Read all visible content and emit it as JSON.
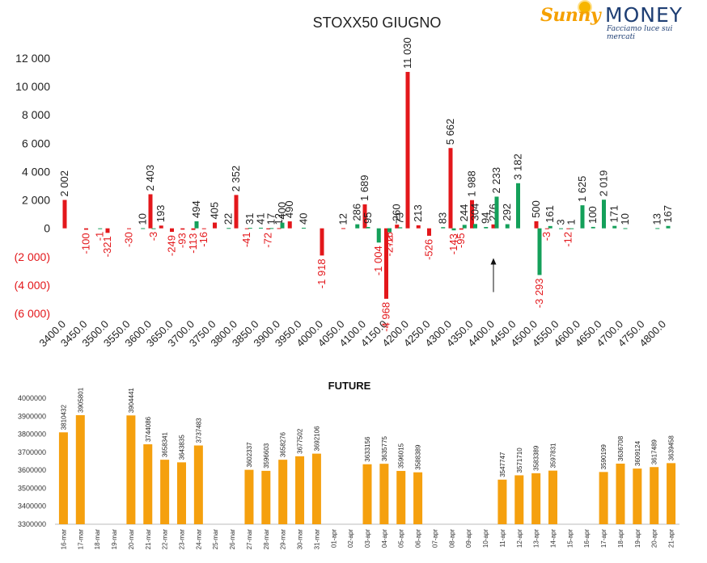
{
  "logo": {
    "sunny": "Sunny",
    "money": "MONEY",
    "tagline": "Facciamo luce sui mercati"
  },
  "chart_data": [
    {
      "type": "bar",
      "title": "STOXX50 GIUGNO",
      "ylim": [
        -6000,
        12000
      ],
      "yticks": [
        12000,
        10000,
        8000,
        6000,
        4000,
        2000,
        0,
        -2000,
        -4000,
        -6000
      ],
      "ytick_labels": [
        "12 000",
        "10 000",
        "8 000",
        "6 000",
        "4 000",
        "2 000",
        "0",
        "(2 000)",
        "(4 000)",
        "(6 000)"
      ],
      "categories": [
        "3400.0",
        "3450.0",
        "3500.0",
        "3550.0",
        "3600.0",
        "3650.0",
        "3700.0",
        "3750.0",
        "3800.0",
        "3850.0",
        "3900.0",
        "3950.0",
        "4000.0",
        "4050.0",
        "4100.0",
        "4150.0",
        "4200.0",
        "4250.0",
        "4300.0",
        "4350.0",
        "4400.0",
        "4450.0",
        "4500.0",
        "4550.0",
        "4600.0",
        "4650.0",
        "4700.0",
        "4750.0",
        "4800.0"
      ],
      "colors": {
        "series1": "#e3171b",
        "series2": "#14a05a",
        "positive_label": "#222222",
        "negative_label": "#e3171b"
      },
      "series": [
        {
          "values": [
            {
              "x": 3400,
              "y": 2002,
              "label": "2 002"
            },
            {
              "x": 3450,
              "y": -100,
              "label": "-100"
            },
            {
              "x": 3500,
              "y": -321,
              "label": "-321"
            },
            {
              "x": 3550,
              "y": -30,
              "label": "-30"
            },
            {
              "x": 3600,
              "y": 2403,
              "label": "2 403"
            },
            {
              "x": 3625,
              "y": 193,
              "label": "193"
            },
            {
              "x": 3650,
              "y": -249,
              "label": "-249"
            },
            {
              "x": 3675,
              "y": -93,
              "label": "-93"
            },
            {
              "x": 3700,
              "y": -113,
              "label": "-113"
            },
            {
              "x": 3725,
              "y": -16,
              "label": "-16"
            },
            {
              "x": 3750,
              "y": 405,
              "label": "405"
            },
            {
              "x": 3800,
              "y": 2352,
              "label": "2 352"
            },
            {
              "x": 3825,
              "y": -41,
              "label": "-41"
            },
            {
              "x": 3875,
              "y": -72,
              "label": "-72"
            },
            {
              "x": 3900,
              "y": 12,
              "label": "12"
            },
            {
              "x": 3925,
              "y": 490,
              "label": "490"
            },
            {
              "x": 4000,
              "y": -1918,
              "label": "-1 918"
            },
            {
              "x": 4050,
              "y": 12,
              "label": "12"
            },
            {
              "x": 4100,
              "y": 1689,
              "label": "1 689"
            },
            {
              "x": 4150,
              "y": -4968,
              "label": "-4 968"
            },
            {
              "x": 4175,
              "y": 260,
              "label": "260"
            },
            {
              "x": 4200,
              "y": 11030,
              "label": "11 030"
            },
            {
              "x": 4225,
              "y": 213,
              "label": "213"
            },
            {
              "x": 4250,
              "y": -526,
              "label": "-526"
            },
            {
              "x": 4300,
              "y": 5662,
              "label": "5 662"
            },
            {
              "x": 4325,
              "y": -95,
              "label": "-95"
            },
            {
              "x": 4350,
              "y": 1988,
              "label": "1 988"
            },
            {
              "x": 4400,
              "y": 276,
              "label": "276"
            },
            {
              "x": 4500,
              "y": 500,
              "label": "500"
            },
            {
              "x": 4525,
              "y": -3,
              "label": "-3"
            },
            {
              "x": 4575,
              "y": -12,
              "label": "-12"
            }
          ]
        },
        {
          "values": [
            {
              "x": 3475,
              "y": -1,
              "label": "-1"
            },
            {
              "x": 3575,
              "y": 10,
              "label": "10"
            },
            {
              "x": 3600,
              "y": -3,
              "label": "-3"
            },
            {
              "x": 3700,
              "y": 494,
              "label": "494"
            },
            {
              "x": 3775,
              "y": 22,
              "label": "22"
            },
            {
              "x": 3825,
              "y": 31,
              "label": "31"
            },
            {
              "x": 3850,
              "y": 41,
              "label": "41"
            },
            {
              "x": 3875,
              "y": 17,
              "label": "17"
            },
            {
              "x": 3900,
              "y": 400,
              "label": "400"
            },
            {
              "x": 3950,
              "y": 40,
              "label": "40"
            },
            {
              "x": 4075,
              "y": 286,
              "label": "286"
            },
            {
              "x": 4100,
              "y": 95,
              "label": "95"
            },
            {
              "x": 4125,
              "y": -1004,
              "label": "-1 004"
            },
            {
              "x": 4150,
              "y": -272,
              "label": "-272"
            },
            {
              "x": 4150,
              "y": -16,
              "label": "-16"
            },
            {
              "x": 4175,
              "y": 73,
              "label": "73"
            },
            {
              "x": 4275,
              "y": 83,
              "label": "83"
            },
            {
              "x": 4300,
              "y": -143,
              "label": "-143"
            },
            {
              "x": 4325,
              "y": 244,
              "label": "244"
            },
            {
              "x": 4350,
              "y": 304,
              "label": "304"
            },
            {
              "x": 4375,
              "y": 94,
              "label": "94"
            },
            {
              "x": 4400,
              "y": 2233,
              "label": "2 233"
            },
            {
              "x": 4425,
              "y": 292,
              "label": "292"
            },
            {
              "x": 4450,
              "y": 3182,
              "label": "3 182"
            },
            {
              "x": 4500,
              "y": -3293,
              "label": "-3 293"
            },
            {
              "x": 4525,
              "y": 161,
              "label": "161"
            },
            {
              "x": 4550,
              "y": 3,
              "label": "3"
            },
            {
              "x": 4575,
              "y": 1,
              "label": "1"
            },
            {
              "x": 4600,
              "y": 1625,
              "label": "1 625"
            },
            {
              "x": 4625,
              "y": 100,
              "label": "100"
            },
            {
              "x": 4650,
              "y": 2019,
              "label": "2 019"
            },
            {
              "x": 4675,
              "y": 171,
              "label": "171"
            },
            {
              "x": 4700,
              "y": 10,
              "label": "10"
            },
            {
              "x": 4775,
              "y": 13,
              "label": "13"
            },
            {
              "x": 4800,
              "y": 167,
              "label": "167"
            }
          ]
        }
      ],
      "annotation": {
        "type": "arrow",
        "x": 4400,
        "y_from": -4500,
        "y_to": -2100
      }
    },
    {
      "type": "bar",
      "title": "FUTURE",
      "ylim": [
        3300000,
        4000000
      ],
      "yticks": [
        3300000,
        3400000,
        3500000,
        3600000,
        3700000,
        3800000,
        3900000,
        4000000
      ],
      "ytick_labels": [
        "3300000",
        "3400000",
        "3500000",
        "3600000",
        "3700000",
        "3800000",
        "3900000",
        "4000000"
      ],
      "color": "#f5a00e",
      "categories": [
        "16-mar",
        "17-mar",
        "18-mar",
        "19-mar",
        "20-mar",
        "21-mar",
        "22-mar",
        "23-mar",
        "24-mar",
        "25-mar",
        "26-mar",
        "27-mar",
        "28-mar",
        "29-mar",
        "30-mar",
        "31-mar",
        "01-apr",
        "02-apr",
        "03-apr",
        "04-apr",
        "05-apr",
        "06-apr",
        "07-apr",
        "08-apr",
        "09-apr",
        "10-apr",
        "11-apr",
        "12-apr",
        "13-apr",
        "14-apr",
        "15-apr",
        "16-apr",
        "17-apr",
        "18-apr",
        "19-apr",
        "20-apr",
        "21-apr"
      ],
      "values": [
        3810432,
        3905801,
        null,
        null,
        3904441,
        3744086,
        3658341,
        3643835,
        3737483,
        null,
        null,
        3602337,
        3596603,
        3658276,
        3677502,
        3692106,
        null,
        null,
        3633156,
        3635775,
        3596015,
        3588389,
        null,
        null,
        null,
        null,
        3547747,
        3571710,
        3583389,
        3597831,
        null,
        null,
        3590199,
        3636708,
        3609124,
        3617489,
        3639458
      ],
      "value_labels": [
        "3810432",
        "3905801",
        "",
        "",
        "3904441",
        "3744086",
        "3658341",
        "3643835",
        "3737483",
        "",
        "",
        "3602337",
        "3596603",
        "3658276",
        "3677502",
        "3692106",
        "",
        "",
        "3633156",
        "3635775",
        "3596015",
        "3588389",
        "",
        "",
        "",
        "",
        "3547747",
        "3571710",
        "3583389",
        "3597831",
        "",
        "",
        "3590199",
        "3636708",
        "3609124",
        "3617489",
        "3639458"
      ]
    }
  ]
}
